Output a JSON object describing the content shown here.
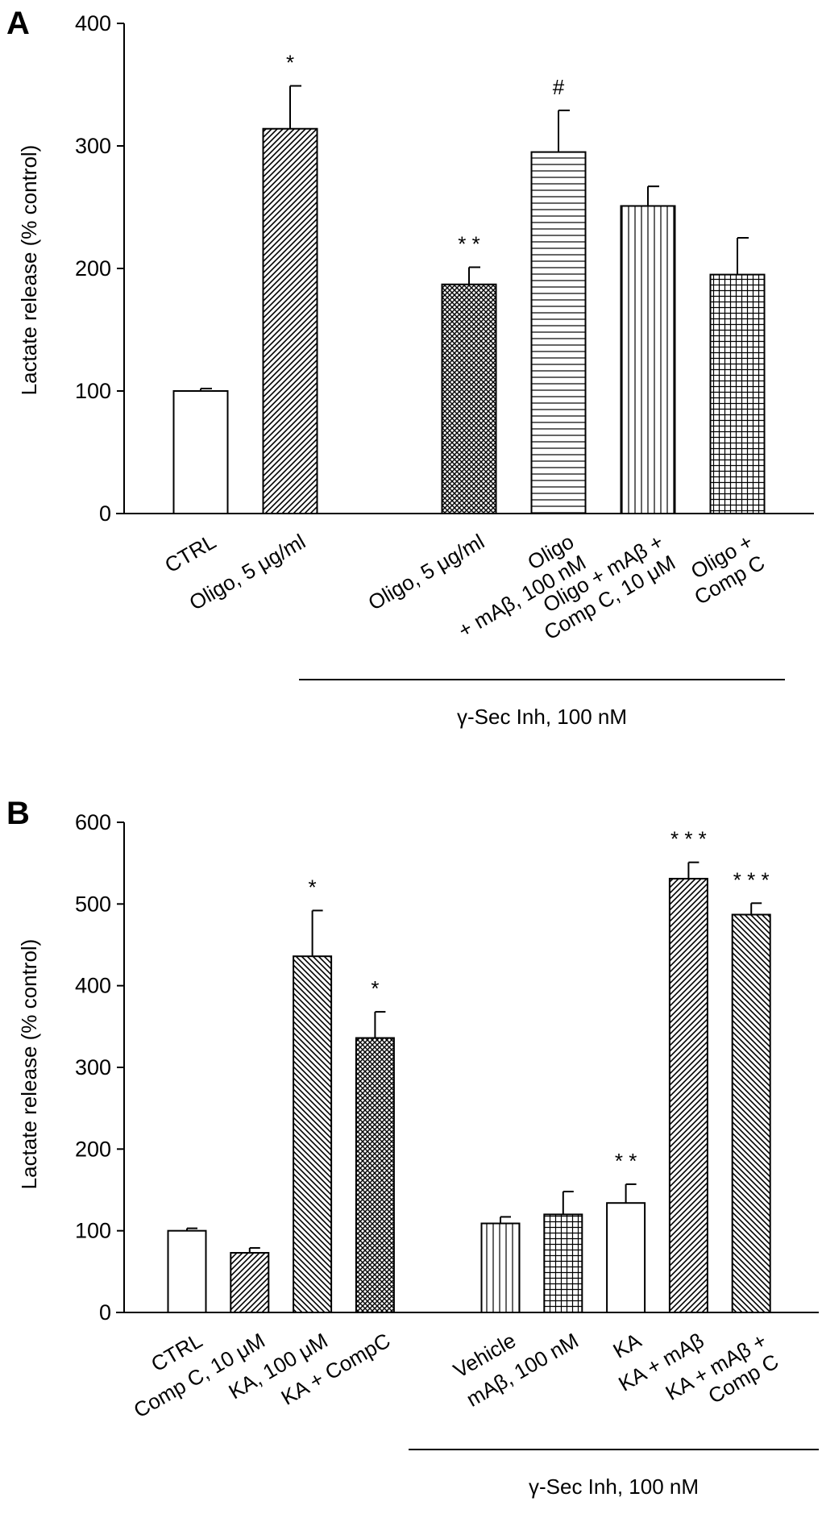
{
  "chart_data": [
    {
      "type": "bar",
      "panel_label": "A",
      "ylabel": "Lactate release (% control)",
      "ylim": [
        0,
        400
      ],
      "yticks": [
        "0",
        "100",
        "200",
        "300",
        "400"
      ],
      "grid": false,
      "bracket_label": "γ-Sec Inh, 100 nM",
      "categories": [
        {
          "lines": [
            "CTRL"
          ]
        },
        {
          "lines": [
            "Oligo, 5 μg/ml"
          ]
        },
        {
          "lines": [
            "Oligo, 5 μg/ml"
          ]
        },
        {
          "lines": [
            "Oligo",
            "+ mAβ, 100 nM"
          ]
        },
        {
          "lines": [
            "Oligo + mAβ +",
            "Comp C, 10 μM"
          ]
        },
        {
          "lines": [
            "Oligo +",
            "Comp C"
          ]
        }
      ],
      "values": [
        100,
        314,
        187,
        295,
        251,
        195
      ],
      "error_upper": [
        102,
        349,
        201,
        329,
        267,
        225
      ],
      "significance": [
        "",
        "*",
        "* *",
        "#",
        "",
        ""
      ],
      "patterns": [
        "none",
        "diag-up",
        "crosshatch",
        "horizontal",
        "vertical",
        "grid"
      ],
      "bracket_groups": [
        2,
        3,
        4,
        5
      ]
    },
    {
      "type": "bar",
      "panel_label": "B",
      "ylabel": "Lactate release (% control)",
      "ylim": [
        0,
        600
      ],
      "yticks": [
        "0",
        "100",
        "200",
        "300",
        "400",
        "500",
        "600"
      ],
      "grid": false,
      "bracket_label": "γ-Sec Inh, 100 nM",
      "categories": [
        {
          "lines": [
            "CTRL"
          ]
        },
        {
          "lines": [
            "Comp C, 10 μM"
          ]
        },
        {
          "lines": [
            "KA, 100 μM"
          ]
        },
        {
          "lines": [
            "KA + CompC"
          ]
        },
        {
          "lines": [
            "Vehicle"
          ]
        },
        {
          "lines": [
            "mAβ, 100 nM"
          ]
        },
        {
          "lines": [
            "KA"
          ]
        },
        {
          "lines": [
            "KA + mAβ"
          ]
        },
        {
          "lines": [
            "KA + mAβ +",
            "Comp C"
          ]
        }
      ],
      "values": [
        100,
        73,
        436,
        336,
        109,
        120,
        134,
        531,
        487
      ],
      "error_upper": [
        103,
        79,
        492,
        368,
        117,
        148,
        157,
        551,
        501
      ],
      "significance": [
        "",
        "",
        "*",
        "*",
        "",
        "",
        "* *",
        "* * *",
        "* * *"
      ],
      "patterns": [
        "none",
        "diag-up",
        "diag-down",
        "crosshatch",
        "vertical",
        "grid",
        "none",
        "diag-up",
        "diag-down"
      ],
      "bracket_groups": [
        4,
        5,
        6,
        7,
        8
      ]
    }
  ]
}
